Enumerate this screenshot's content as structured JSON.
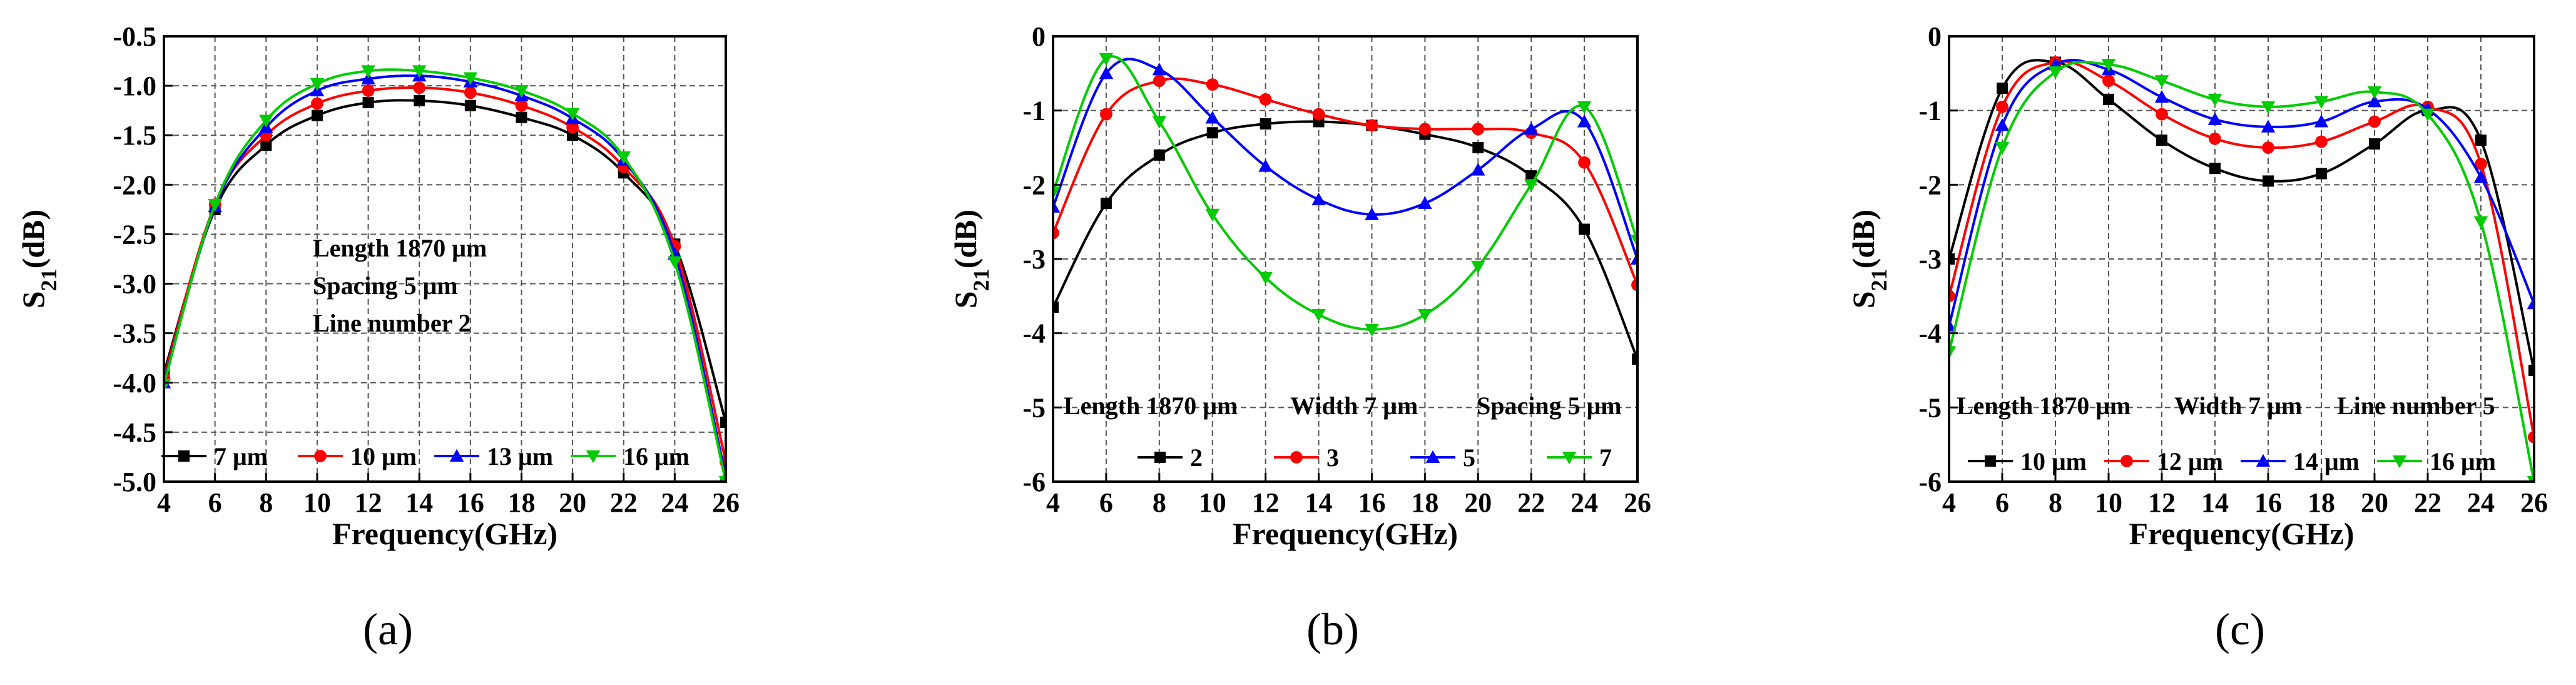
{
  "chart_data": [
    {
      "type": "line",
      "panel": "a",
      "caption": "(a)",
      "xlabel": "Frequency(GHz)",
      "ylabel_main": "S",
      "ylabel_sub": "21",
      "ylabel_tail": "(dB)",
      "xlim": [
        4,
        26
      ],
      "ylim": [
        -5.0,
        -0.5
      ],
      "xticks": [
        4,
        6,
        8,
        10,
        12,
        14,
        16,
        18,
        20,
        22,
        24,
        26
      ],
      "yticks": [
        -5.0,
        -4.5,
        -4.0,
        -3.5,
        -3.0,
        -2.5,
        -2.0,
        -1.5,
        -1.0,
        -0.5
      ],
      "ytick_labels": [
        "-5.0",
        "-4.5",
        "-4.0",
        "-3.5",
        "-3.0",
        "-2.5",
        "-2.0",
        "-1.5",
        "-1.0",
        "-0.5"
      ],
      "annotations": [
        "Length 1870 μm",
        "Spacing 5 μm",
        "Line number 2"
      ],
      "legend_position": "bottom",
      "series": [
        {
          "name": "7 μm",
          "color": "#000000",
          "marker": "square",
          "x": [
            4,
            6,
            8,
            10,
            12,
            14,
            16,
            18,
            20,
            22,
            24,
            26
          ],
          "y": [
            -3.9,
            -2.25,
            -1.6,
            -1.3,
            -1.17,
            -1.15,
            -1.2,
            -1.32,
            -1.5,
            -1.88,
            -2.6,
            -4.4
          ]
        },
        {
          "name": "10 μm",
          "color": "#ff0000",
          "marker": "circle",
          "x": [
            4,
            6,
            8,
            10,
            12,
            14,
            16,
            18,
            20,
            22,
            24,
            26
          ],
          "y": [
            -3.95,
            -2.2,
            -1.5,
            -1.18,
            -1.05,
            -1.02,
            -1.07,
            -1.2,
            -1.42,
            -1.82,
            -2.62,
            -4.8
          ]
        },
        {
          "name": "13 μm",
          "color": "#0000ff",
          "marker": "triangle-up",
          "x": [
            4,
            6,
            8,
            10,
            12,
            14,
            16,
            18,
            20,
            22,
            24,
            26
          ],
          "y": [
            -4.0,
            -2.22,
            -1.42,
            -1.05,
            -0.93,
            -0.9,
            -0.96,
            -1.1,
            -1.33,
            -1.75,
            -2.7,
            -4.95
          ]
        },
        {
          "name": "16 μm",
          "color": "#00cc00",
          "marker": "triangle-down",
          "x": [
            4,
            6,
            8,
            10,
            12,
            14,
            16,
            18,
            20,
            22,
            24,
            26
          ],
          "y": [
            -4.02,
            -2.2,
            -1.35,
            -0.98,
            -0.85,
            -0.85,
            -0.92,
            -1.05,
            -1.28,
            -1.72,
            -2.78,
            -5.0
          ]
        }
      ]
    },
    {
      "type": "line",
      "panel": "b",
      "caption": "(b)",
      "xlabel": "Frequency(GHz)",
      "ylabel_main": "S",
      "ylabel_sub": "21",
      "ylabel_tail": "(dB)",
      "xlim": [
        4,
        26
      ],
      "ylim": [
        -6,
        0
      ],
      "xticks": [
        4,
        6,
        8,
        10,
        12,
        14,
        16,
        18,
        20,
        22,
        24,
        26
      ],
      "yticks": [
        -6,
        -5,
        -4,
        -3,
        -2,
        -1,
        0
      ],
      "ytick_labels": [
        "-6",
        "-5",
        "-4",
        "-3",
        "-2",
        "-1",
        "0"
      ],
      "annotations": [
        "Length 1870 μm",
        "Width 7 μm",
        "Spacing 5 μm"
      ],
      "legend_position": "bottom",
      "series": [
        {
          "name": "2",
          "color": "#000000",
          "marker": "square",
          "x": [
            4,
            6,
            8,
            10,
            12,
            14,
            16,
            18,
            20,
            22,
            24,
            26
          ],
          "y": [
            -3.65,
            -2.25,
            -1.6,
            -1.3,
            -1.18,
            -1.15,
            -1.2,
            -1.32,
            -1.5,
            -1.88,
            -2.6,
            -4.35
          ]
        },
        {
          "name": "3",
          "color": "#ff0000",
          "marker": "circle",
          "x": [
            4,
            6,
            8,
            10,
            12,
            14,
            16,
            18,
            20,
            22,
            24,
            26
          ],
          "y": [
            -2.65,
            -1.05,
            -0.6,
            -0.65,
            -0.85,
            -1.05,
            -1.2,
            -1.25,
            -1.25,
            -1.3,
            -1.7,
            -3.35
          ]
        },
        {
          "name": "5",
          "color": "#0000ff",
          "marker": "triangle-up",
          "x": [
            4,
            6,
            8,
            10,
            12,
            14,
            16,
            18,
            20,
            22,
            24,
            26
          ],
          "y": [
            -2.3,
            -0.5,
            -0.45,
            -1.1,
            -1.75,
            -2.2,
            -2.4,
            -2.25,
            -1.8,
            -1.25,
            -1.15,
            -3.0
          ]
        },
        {
          "name": "7",
          "color": "#00cc00",
          "marker": "triangle-down",
          "x": [
            4,
            6,
            8,
            10,
            12,
            14,
            16,
            18,
            20,
            22,
            24,
            26
          ],
          "y": [
            -2.1,
            -0.3,
            -1.15,
            -2.4,
            -3.25,
            -3.75,
            -3.95,
            -3.75,
            -3.1,
            -2.0,
            -0.95,
            -2.75
          ]
        }
      ]
    },
    {
      "type": "line",
      "panel": "c",
      "caption": "(c)",
      "xlabel": "Frequency(GHz)",
      "ylabel_main": "S",
      "ylabel_sub": "21",
      "ylabel_tail": "(dB)",
      "xlim": [
        4,
        26
      ],
      "ylim": [
        -6,
        0
      ],
      "xticks": [
        4,
        6,
        8,
        10,
        12,
        14,
        16,
        18,
        20,
        22,
        24,
        26
      ],
      "yticks": [
        -6,
        -5,
        -4,
        -3,
        -2,
        -1,
        0
      ],
      "ytick_labels": [
        "-6",
        "-5",
        "-4",
        "-3",
        "-2",
        "-1",
        "0"
      ],
      "annotations": [
        "Length 1870 μm",
        "Width 7 μm",
        "Line number 5"
      ],
      "legend_position": "bottom",
      "series": [
        {
          "name": "10 μm",
          "color": "#000000",
          "marker": "square",
          "x": [
            4,
            6,
            8,
            10,
            12,
            14,
            16,
            18,
            20,
            22,
            24,
            26
          ],
          "y": [
            -3.0,
            -0.7,
            -0.35,
            -0.85,
            -1.4,
            -1.78,
            -1.95,
            -1.85,
            -1.45,
            -1.0,
            -1.4,
            -4.5
          ]
        },
        {
          "name": "12 μm",
          "color": "#ff0000",
          "marker": "circle",
          "x": [
            4,
            6,
            8,
            10,
            12,
            14,
            16,
            18,
            20,
            22,
            24,
            26
          ],
          "y": [
            -3.5,
            -0.95,
            -0.35,
            -0.6,
            -1.05,
            -1.38,
            -1.5,
            -1.42,
            -1.15,
            -0.95,
            -1.72,
            -5.4
          ]
        },
        {
          "name": "14 μm",
          "color": "#0000ff",
          "marker": "triangle-up",
          "x": [
            4,
            6,
            8,
            10,
            12,
            14,
            16,
            18,
            20,
            22,
            24,
            26
          ],
          "y": [
            -3.9,
            -1.2,
            -0.38,
            -0.45,
            -0.82,
            -1.12,
            -1.22,
            -1.15,
            -0.88,
            -0.98,
            -1.9,
            -3.6
          ]
        },
        {
          "name": "16 μm",
          "color": "#00cc00",
          "marker": "triangle-down",
          "x": [
            4,
            6,
            8,
            10,
            12,
            14,
            16,
            18,
            20,
            22,
            24,
            26
          ],
          "y": [
            -4.25,
            -1.5,
            -0.48,
            -0.38,
            -0.6,
            -0.85,
            -0.95,
            -0.88,
            -0.75,
            -1.05,
            -2.5,
            -6.0
          ]
        }
      ]
    }
  ]
}
